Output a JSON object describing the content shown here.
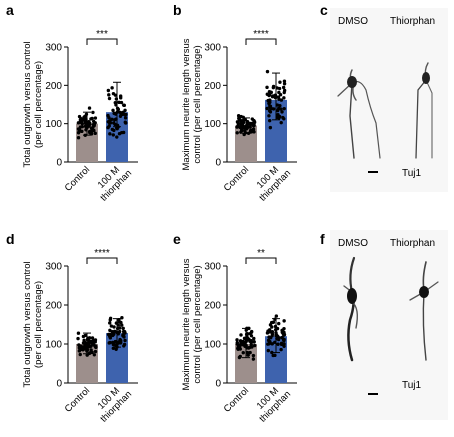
{
  "panels": {
    "a": "a",
    "b": "b",
    "c": "c",
    "d": "d",
    "e": "e",
    "f": "f"
  },
  "micrographs": {
    "c": {
      "dmso": "DMSO",
      "thiorphan": "Thiorphan",
      "stain": "Tuj1"
    },
    "f": {
      "dmso": "DMSO",
      "thiorphan": "Thiorphan",
      "stain": "Tuj1"
    }
  },
  "colors": {
    "control": "#9d8f8c",
    "thiorphan": "#3e63ae",
    "dots": "#000000"
  },
  "chart_data": [
    {
      "id": "a",
      "type": "bar",
      "categories": [
        "Control",
        "100 M|thiorphan"
      ],
      "values": [
        100,
        130
      ],
      "error": [
        [
          70,
          130
        ],
        [
          92,
          208
        ]
      ],
      "ylabel": "Total outgrowth versus control|(per cell percentage)",
      "yticks": [
        0,
        100,
        200,
        300
      ],
      "ylim": [
        0,
        300
      ],
      "significance": "***"
    },
    {
      "id": "b",
      "type": "bar",
      "categories": [
        "Control",
        "100 M|thiorphan"
      ],
      "values": [
        95,
        162
      ],
      "error": [
        [
          75,
          115
        ],
        [
          110,
          232
        ]
      ],
      "ylabel": "Maximum neurite length versus|control (per cell percentage)",
      "yticks": [
        0,
        100,
        200,
        300
      ],
      "ylim": [
        0,
        300
      ],
      "significance": "****"
    },
    {
      "id": "d",
      "type": "bar",
      "categories": [
        "Control",
        "100 M|thiorphan"
      ],
      "values": [
        100,
        128
      ],
      "error": [
        [
          75,
          128
        ],
        [
          92,
          165
        ]
      ],
      "ylabel": "Total outgrowth versus control|(per cell percentage)",
      "yticks": [
        0,
        100,
        200,
        300
      ],
      "ylim": [
        0,
        300
      ],
      "significance": "****"
    },
    {
      "id": "e",
      "type": "bar",
      "categories": [
        "Control",
        "100 M|thiorphan"
      ],
      "values": [
        100,
        120
      ],
      "error": [
        [
          65,
          140
        ],
        [
          78,
          165
        ]
      ],
      "ylabel": "Maximum neurite length versus|control (per cell percentage)",
      "yticks": [
        0,
        100,
        200,
        300
      ],
      "ylim": [
        0,
        300
      ],
      "significance": "**"
    }
  ]
}
